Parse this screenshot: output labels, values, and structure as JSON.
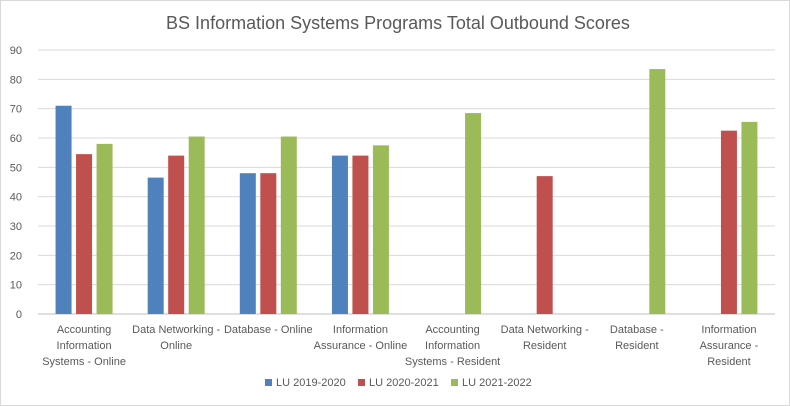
{
  "chart_data": {
    "type": "bar",
    "title": "BS Information Systems Programs Total Outbound Scores",
    "xlabel": "",
    "ylabel": "",
    "ylim": [
      0,
      90
    ],
    "yticks": [
      "0",
      "10",
      "20",
      "30",
      "40",
      "50",
      "60",
      "70",
      "80",
      "90"
    ],
    "grid": true,
    "legend_position": "bottom",
    "categories": [
      [
        "Accounting",
        "Information",
        "Systems - Online"
      ],
      [
        "Data Networking -",
        "Online"
      ],
      [
        "Database - Online"
      ],
      [
        "Information",
        "Assurance - Online"
      ],
      [
        "Accounting",
        "Information",
        "Systems - Resident"
      ],
      [
        "Data Networking -",
        "Resident"
      ],
      [
        "Database -",
        "Resident"
      ],
      [
        "Information",
        "Assurance -",
        "Resident"
      ]
    ],
    "series": [
      {
        "name": "LU 2019-2020",
        "color": "#4f81bd",
        "values": [
          71,
          46.5,
          48,
          54,
          null,
          null,
          null,
          null
        ]
      },
      {
        "name": "LU 2020-2021",
        "color": "#c0504d",
        "values": [
          54.5,
          54,
          48,
          54,
          null,
          47,
          null,
          62.5
        ]
      },
      {
        "name": "LU 2021-2022",
        "color": "#9bbb59",
        "values": [
          58,
          60.5,
          60.5,
          57.5,
          68.5,
          null,
          83.5,
          65.5
        ]
      }
    ]
  }
}
